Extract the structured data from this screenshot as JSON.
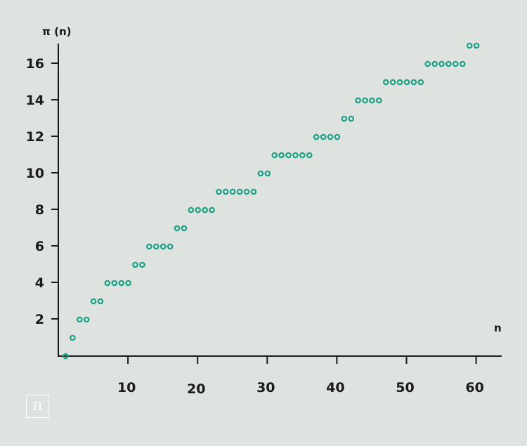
{
  "logo": {
    "symbol": "π"
  },
  "chart_data": {
    "type": "scatter",
    "title": "",
    "xlabel": "n",
    "ylabel": "π (n)",
    "xlim": [
      0,
      64
    ],
    "ylim": [
      0,
      17
    ],
    "xticks": [
      10,
      20,
      30,
      40,
      50,
      60
    ],
    "yticks": [
      2,
      4,
      6,
      8,
      10,
      12,
      14,
      16
    ],
    "grid": false,
    "legend": "none",
    "marker_color": "#16a085",
    "x": [
      1,
      2,
      3,
      4,
      5,
      6,
      7,
      8,
      9,
      10,
      11,
      12,
      13,
      14,
      15,
      16,
      17,
      18,
      19,
      20,
      21,
      22,
      23,
      24,
      25,
      26,
      27,
      28,
      29,
      30,
      31,
      32,
      33,
      34,
      35,
      36,
      37,
      38,
      39,
      40,
      41,
      42,
      43,
      44,
      45,
      46,
      47,
      48,
      49,
      50,
      51,
      52,
      53,
      54,
      55,
      56,
      57,
      58,
      59,
      60
    ],
    "y": [
      0,
      1,
      2,
      2,
      3,
      3,
      4,
      4,
      4,
      4,
      5,
      5,
      6,
      6,
      6,
      6,
      7,
      7,
      8,
      8,
      8,
      8,
      9,
      9,
      9,
      9,
      9,
      9,
      10,
      10,
      11,
      11,
      11,
      11,
      11,
      11,
      12,
      12,
      12,
      12,
      13,
      13,
      14,
      14,
      14,
      14,
      15,
      15,
      15,
      15,
      15,
      15,
      16,
      16,
      16,
      16,
      16,
      16,
      17,
      17
    ]
  }
}
